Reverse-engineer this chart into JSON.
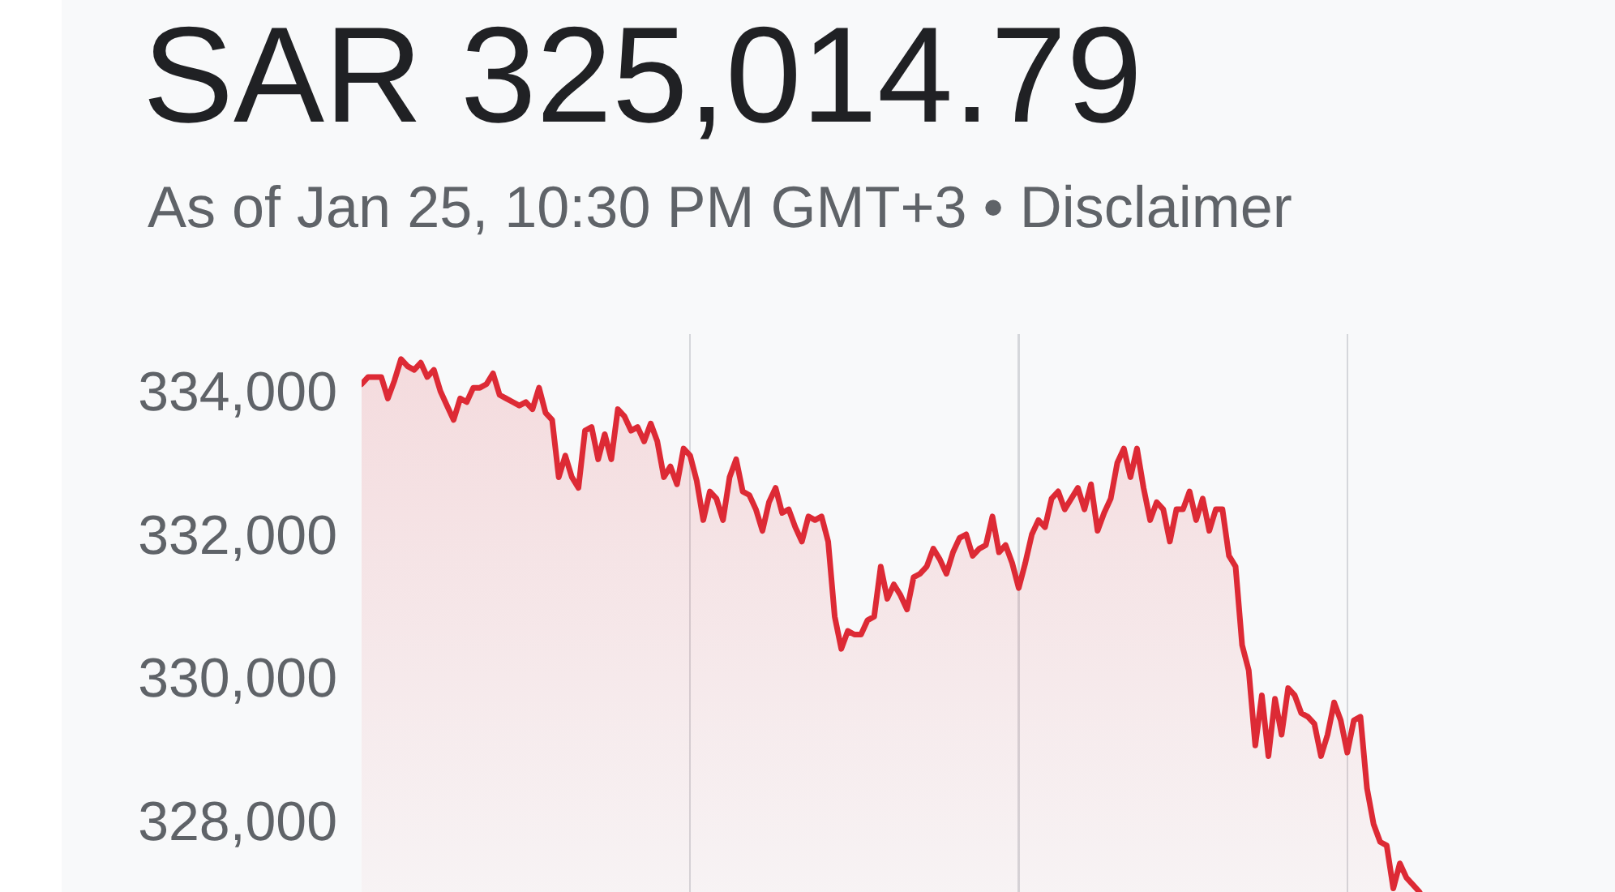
{
  "chart_data": {
    "type": "area",
    "title": "SAR 325,014.79",
    "subtitle": "As of Jan 25, 10:30 PM GMT+3 • Disclaimer",
    "categories": [
      null,
      null,
      null,
      null,
      null,
      null,
      null,
      null,
      null,
      null,
      null,
      null,
      null,
      null,
      null,
      null,
      null,
      null,
      null,
      null,
      null,
      null,
      null,
      null,
      null,
      null,
      null,
      null,
      null,
      null,
      null,
      null,
      null,
      null,
      null,
      null,
      null,
      null,
      null,
      null,
      null,
      null,
      null,
      null,
      null,
      null,
      null,
      null,
      null,
      null,
      null,
      null,
      null,
      null,
      null,
      null,
      null,
      null,
      null,
      null,
      null,
      null,
      null,
      null,
      null,
      null,
      null,
      null,
      null,
      null,
      null,
      null,
      null,
      null,
      null,
      null,
      null,
      null,
      null,
      null,
      null,
      null,
      null,
      null,
      null,
      null,
      null,
      null,
      null,
      null,
      null,
      null,
      null,
      null,
      null,
      null,
      null,
      null,
      null,
      null,
      null,
      null,
      null,
      null,
      null,
      null,
      null,
      null,
      null,
      null,
      null,
      null,
      null,
      null,
      null,
      null,
      null,
      null,
      null,
      null,
      null,
      null,
      null,
      null,
      null,
      null,
      null,
      null,
      null,
      null,
      null,
      null,
      null,
      null,
      null,
      null,
      null,
      null,
      null,
      null,
      null,
      null,
      null,
      null,
      null,
      null,
      null,
      null,
      null,
      null,
      null,
      null,
      null,
      null,
      null,
      null,
      null,
      null,
      null,
      null,
      null,
      null,
      null,
      null,
      null,
      null,
      null,
      null,
      null,
      null,
      null,
      null,
      null,
      null,
      null,
      null,
      null,
      null,
      null,
      null,
      null,
      null,
      null,
      null,
      null,
      null,
      null,
      null,
      null,
      null,
      null
    ],
    "values": [
      334100,
      334200,
      334200,
      334200,
      333900,
      334150,
      334450,
      334350,
      334300,
      334400,
      334200,
      334300,
      334000,
      333800,
      333600,
      333900,
      333850,
      334050,
      334050,
      334100,
      334250,
      333950,
      333900,
      333850,
      333800,
      333850,
      333750,
      334050,
      333700,
      333600,
      332800,
      333100,
      332800,
      332650,
      333450,
      333500,
      333050,
      333400,
      333050,
      333750,
      333650,
      333450,
      333500,
      333300,
      333550,
      333300,
      332800,
      332950,
      332700,
      333200,
      333100,
      332750,
      332200,
      332600,
      332500,
      332200,
      332800,
      333050,
      332600,
      332550,
      332350,
      332050,
      332450,
      332650,
      332300,
      332350,
      332100,
      331900,
      332250,
      332200,
      332250,
      331900,
      330850,
      330400,
      330650,
      330600,
      330600,
      330800,
      330850,
      331550,
      331100,
      331300,
      331150,
      330950,
      331400,
      331450,
      331550,
      331800,
      331650,
      331450,
      331750,
      331950,
      332000,
      331700,
      331800,
      331850,
      332250,
      331750,
      331850,
      331600,
      331250,
      331600,
      332000,
      332200,
      332100,
      332500,
      332600,
      332350,
      332500,
      332650,
      332350,
      332700,
      332050,
      332300,
      332500,
      333000,
      333200,
      332800,
      333200,
      332650,
      332200,
      332450,
      332350,
      331900,
      332350,
      332350,
      332600,
      332200,
      332500,
      332050,
      332350,
      332350,
      331700,
      331550,
      330450,
      330100,
      329050,
      329750,
      328900,
      329700,
      329200,
      329850,
      329750,
      329500,
      329450,
      329350,
      328900,
      329200,
      329650,
      329400,
      328950,
      329400,
      329450,
      328450,
      327950,
      327700,
      327650,
      327050,
      327400,
      327200,
      327100,
      327000,
      null,
      null,
      null,
      null,
      null,
      null,
      null,
      null,
      null,
      null,
      null,
      null,
      null,
      null,
      null,
      null,
      null,
      null,
      null,
      null,
      null,
      null,
      null,
      null,
      null,
      null,
      null,
      null,
      null
    ],
    "color": "#dd2a35",
    "ylim": [
      327000,
      334800
    ],
    "yticks": [
      {
        "value": 328000,
        "label": "328,000"
      },
      {
        "value": 330000,
        "label": "330,000"
      },
      {
        "value": 332000,
        "label": "332,000"
      },
      {
        "value": 334000,
        "label": "334,000"
      }
    ],
    "grid": "x",
    "tick_labels": "y"
  }
}
